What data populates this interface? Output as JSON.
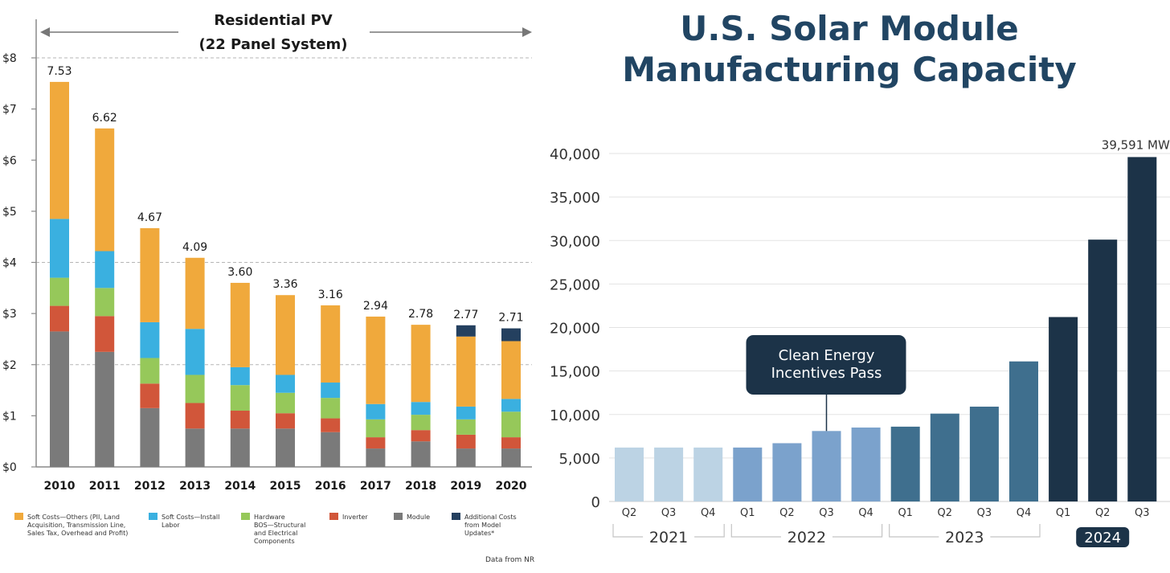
{
  "chart_data": [
    {
      "type": "bar",
      "stacked": true,
      "title": "Residential PV",
      "subtitle": "(22 Panel System)",
      "xlabel": "",
      "ylabel": "",
      "ylim": [
        0,
        8
      ],
      "yticks": [
        0,
        1,
        2,
        3,
        4,
        5,
        6,
        7,
        8
      ],
      "ytick_labels": [
        "$0",
        "$1",
        "$2",
        "$3",
        "$4",
        "$5",
        "$6",
        "$7",
        "$8"
      ],
      "dashed_gridlines": [
        2,
        4,
        8
      ],
      "categories": [
        "2010",
        "2011",
        "2012",
        "2013",
        "2014",
        "2015",
        "2016",
        "2017",
        "2018",
        "2019",
        "2020"
      ],
      "totals": [
        "7.53",
        "6.62",
        "4.67",
        "4.09",
        "3.60",
        "3.36",
        "3.16",
        "2.94",
        "2.78",
        "2.77",
        "2.71"
      ],
      "series": [
        {
          "name": "Module",
          "color": "#7a7a7a",
          "values": [
            2.65,
            2.25,
            1.15,
            0.75,
            0.75,
            0.75,
            0.68,
            0.36,
            0.5,
            0.36,
            0.36
          ]
        },
        {
          "name": "Inverter",
          "color": "#d1563a",
          "values": [
            0.5,
            0.7,
            0.48,
            0.5,
            0.35,
            0.3,
            0.27,
            0.22,
            0.22,
            0.27,
            0.22
          ]
        },
        {
          "name": "Hardware BOS—Structural and Electrical Components",
          "color": "#96c85a",
          "values": [
            0.55,
            0.55,
            0.5,
            0.55,
            0.5,
            0.4,
            0.4,
            0.35,
            0.3,
            0.3,
            0.5
          ]
        },
        {
          "name": "Soft Costs—Install Labor",
          "color": "#3ab0e0",
          "values": [
            1.15,
            0.72,
            0.7,
            0.9,
            0.35,
            0.35,
            0.3,
            0.3,
            0.25,
            0.25,
            0.25
          ]
        },
        {
          "name": "Soft Costs—Others (PII, Land Acquisition, Transmission Line, Sales Tax, Overhead and Profit)",
          "color": "#f0a93c",
          "values": [
            2.68,
            2.4,
            1.84,
            1.39,
            1.65,
            1.56,
            1.51,
            1.71,
            1.51,
            1.37,
            1.13
          ]
        },
        {
          "name": "Additional Costs from Model Updates*",
          "color": "#24405f",
          "values": [
            0,
            0,
            0,
            0,
            0,
            0,
            0,
            0,
            0,
            0.22,
            0.25
          ]
        }
      ],
      "legend": [
        {
          "color": "#f0a93c",
          "lines": [
            "Soft Costs—Others (PII, Land",
            "Acquisition, Transmission Line,",
            "Sales Tax, Overhead and Profit)"
          ]
        },
        {
          "color": "#3ab0e0",
          "lines": [
            "Soft Costs—Install",
            "Labor"
          ]
        },
        {
          "color": "#96c85a",
          "lines": [
            "Hardware",
            "BOS—Structural",
            "and Electrical",
            "Components"
          ]
        },
        {
          "color": "#d1563a",
          "lines": [
            "Inverter"
          ]
        },
        {
          "color": "#7a7a7a",
          "lines": [
            "Module"
          ]
        },
        {
          "color": "#24405f",
          "lines": [
            "Additional Costs",
            "from Model",
            "Updates*"
          ]
        }
      ],
      "legend_position": "bottom",
      "source": "Data from NR"
    },
    {
      "type": "bar",
      "title": "U.S. Solar Module",
      "subtitle": "Manufacturing Capacity",
      "xlabel": "",
      "ylabel": "",
      "ylim": [
        0,
        40000
      ],
      "yticks": [
        0,
        5000,
        10000,
        15000,
        20000,
        25000,
        30000,
        35000,
        40000
      ],
      "ytick_labels": [
        "0",
        "5,000",
        "10,000",
        "15,000",
        "20,000",
        "25,000",
        "30,000",
        "35,000",
        "40,000"
      ],
      "grid": true,
      "categories": [
        "Q2",
        "Q3",
        "Q4",
        "Q1",
        "Q2",
        "Q3",
        "Q4",
        "Q1",
        "Q2",
        "Q3",
        "Q4",
        "Q1",
        "Q2",
        "Q3"
      ],
      "values": [
        6200,
        6200,
        6200,
        6200,
        6700,
        8100,
        8500,
        8600,
        10100,
        10900,
        16100,
        21200,
        30100,
        39591
      ],
      "colors": [
        "#bcd3e4",
        "#bcd3e4",
        "#bcd3e4",
        "#7ba2cc",
        "#7ba2cc",
        "#7ba2cc",
        "#7ba2cc",
        "#3f6f8e",
        "#3f6f8e",
        "#3f6f8e",
        "#3f6f8e",
        "#1c3348",
        "#1c3348",
        "#1c3348"
      ],
      "year_groups": [
        {
          "label": "2021",
          "start": 0,
          "end": 2,
          "highlight": false
        },
        {
          "label": "2022",
          "start": 3,
          "end": 6,
          "highlight": false
        },
        {
          "label": "2023",
          "start": 7,
          "end": 10,
          "highlight": false
        },
        {
          "label": "2024",
          "start": 11,
          "end": 13,
          "highlight": true
        }
      ],
      "annotations": [
        {
          "text": "39,591 MW",
          "target_index": 13
        },
        {
          "text_lines": [
            "Clean Energy",
            "Incentives Pass"
          ],
          "target_index": 5
        }
      ]
    }
  ]
}
